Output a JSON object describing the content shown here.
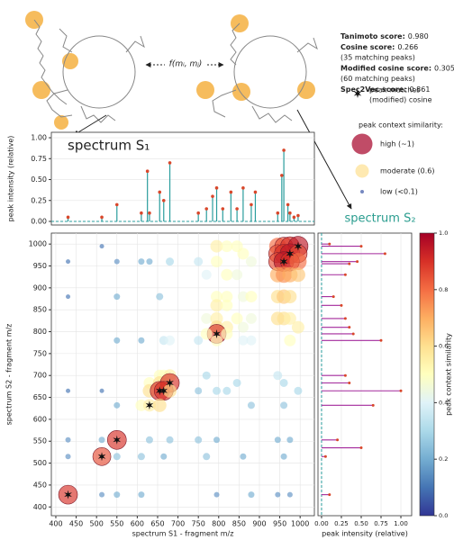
{
  "header": {
    "formula": "f(mᵢ, mⱼ)",
    "scores": [
      {
        "label": "Tanimoto score:",
        "value": "0.980"
      },
      {
        "label": "Cosine score:",
        "value": "0.266"
      },
      {
        "value": "(35 matching peaks)"
      },
      {
        "label": "Modified cosine score:",
        "value": "0.305"
      },
      {
        "value": "(60 matching peaks)"
      },
      {
        "label": "Spec2Vec score:",
        "value": "0.861"
      }
    ]
  },
  "legend": {
    "match": [
      "peak matches",
      "(modified) cosine"
    ],
    "title": "peak context similarity:",
    "items": [
      {
        "label": "high (~1)",
        "value": 1
      },
      {
        "label": "moderate (0.6)",
        "value": 0.6
      },
      {
        "label": "low (<0.1)",
        "value": 0.05
      }
    ]
  },
  "chart_data": [
    {
      "type": "stem",
      "title": "spectrum S₁",
      "ylabel": "peak intensity (relative)",
      "x": [
        430,
        513,
        550,
        610,
        625,
        630,
        655,
        665,
        680,
        750,
        770,
        785,
        795,
        810,
        830,
        845,
        860,
        880,
        890,
        945,
        955,
        960,
        970,
        975,
        985,
        995
      ],
      "values": [
        0.05,
        0.05,
        0.2,
        0.1,
        0.6,
        0.1,
        0.35,
        0.25,
        0.7,
        0.1,
        0.15,
        0.3,
        0.4,
        0.15,
        0.35,
        0.15,
        0.4,
        0.2,
        0.35,
        0.1,
        0.55,
        0.85,
        0.2,
        0.1,
        0.05,
        0.07
      ],
      "xlim": [
        389,
        1035
      ],
      "ylim": [
        -0.043,
        1.065
      ],
      "yticks": [
        {
          "value": 0,
          "label": "0.00"
        },
        {
          "value": 0.25,
          "label": "0.25"
        },
        {
          "value": 0.5,
          "label": "0.50"
        },
        {
          "value": 0.75,
          "label": "0.75"
        },
        {
          "value": 1,
          "label": "1.00"
        }
      ],
      "grid": true,
      "color": "#d9472b",
      "line_color": "#2a9d9d"
    },
    {
      "type": "scatter",
      "xlabel": "spectrum S1 - fragment m/z",
      "ylabel": "spectrum S2 - fragment m/z",
      "xlim": [
        389,
        1035
      ],
      "ylim": [
        380,
        1025
      ],
      "xticks": [
        400,
        450,
        500,
        550,
        600,
        650,
        700,
        750,
        800,
        850,
        900,
        950,
        1000
      ],
      "yticks": [
        400,
        450,
        500,
        550,
        600,
        650,
        700,
        750,
        800,
        850,
        900,
        950,
        1000
      ],
      "grid": true,
      "points": [
        {
          "x": 945,
          "y": 995,
          "value": 0.8
        },
        {
          "x": 960,
          "y": 995,
          "value": 0.85
        },
        {
          "x": 975,
          "y": 995,
          "value": 0.9
        },
        {
          "x": 995,
          "y": 995,
          "value": 0.95
        },
        {
          "x": 945,
          "y": 978,
          "value": 0.85
        },
        {
          "x": 960,
          "y": 978,
          "value": 0.9
        },
        {
          "x": 975,
          "y": 978,
          "value": 0.95
        },
        {
          "x": 995,
          "y": 978,
          "value": 0.85
        },
        {
          "x": 945,
          "y": 960,
          "value": 0.85
        },
        {
          "x": 960,
          "y": 960,
          "value": 0.95
        },
        {
          "x": 975,
          "y": 960,
          "value": 0.9
        },
        {
          "x": 995,
          "y": 960,
          "value": 0.8
        },
        {
          "x": 945,
          "y": 930,
          "value": 0.7
        },
        {
          "x": 960,
          "y": 930,
          "value": 0.75
        },
        {
          "x": 975,
          "y": 930,
          "value": 0.7
        },
        {
          "x": 995,
          "y": 930,
          "value": 0.65
        },
        {
          "x": 945,
          "y": 880,
          "value": 0.6
        },
        {
          "x": 960,
          "y": 880,
          "value": 0.65
        },
        {
          "x": 975,
          "y": 880,
          "value": 0.6
        },
        {
          "x": 945,
          "y": 830,
          "value": 0.6
        },
        {
          "x": 960,
          "y": 830,
          "value": 0.6
        },
        {
          "x": 975,
          "y": 830,
          "value": 0.55
        },
        {
          "x": 795,
          "y": 995,
          "value": 0.55
        },
        {
          "x": 820,
          "y": 995,
          "value": 0.5
        },
        {
          "x": 845,
          "y": 995,
          "value": 0.5
        },
        {
          "x": 860,
          "y": 978,
          "value": 0.5
        },
        {
          "x": 880,
          "y": 960,
          "value": 0.45
        },
        {
          "x": 795,
          "y": 960,
          "value": 0.5
        },
        {
          "x": 820,
          "y": 930,
          "value": 0.5
        },
        {
          "x": 845,
          "y": 930,
          "value": 0.45
        },
        {
          "x": 770,
          "y": 930,
          "value": 0.4
        },
        {
          "x": 795,
          "y": 880,
          "value": 0.5
        },
        {
          "x": 820,
          "y": 880,
          "value": 0.5
        },
        {
          "x": 860,
          "y": 880,
          "value": 0.45
        },
        {
          "x": 880,
          "y": 880,
          "value": 0.5
        },
        {
          "x": 795,
          "y": 860,
          "value": 0.55
        },
        {
          "x": 820,
          "y": 860,
          "value": 0.5
        },
        {
          "x": 845,
          "y": 830,
          "value": 0.5
        },
        {
          "x": 880,
          "y": 830,
          "value": 0.45
        },
        {
          "x": 770,
          "y": 830,
          "value": 0.45
        },
        {
          "x": 795,
          "y": 830,
          "value": 0.55
        },
        {
          "x": 795,
          "y": 810,
          "value": 0.6
        },
        {
          "x": 820,
          "y": 810,
          "value": 0.55
        },
        {
          "x": 860,
          "y": 810,
          "value": 0.45
        },
        {
          "x": 795,
          "y": 795,
          "value": 0.9
        },
        {
          "x": 770,
          "y": 795,
          "value": 0.5
        },
        {
          "x": 820,
          "y": 795,
          "value": 0.5
        },
        {
          "x": 860,
          "y": 780,
          "value": 0.4
        },
        {
          "x": 880,
          "y": 780,
          "value": 0.4
        },
        {
          "x": 750,
          "y": 780,
          "value": 0.35
        },
        {
          "x": 795,
          "y": 780,
          "value": 0.5
        },
        {
          "x": 665,
          "y": 780,
          "value": 0.35
        },
        {
          "x": 680,
          "y": 780,
          "value": 0.4
        },
        {
          "x": 665,
          "y": 700,
          "value": 0.5
        },
        {
          "x": 680,
          "y": 700,
          "value": 0.55
        },
        {
          "x": 655,
          "y": 700,
          "value": 0.5
        },
        {
          "x": 630,
          "y": 683,
          "value": 0.5
        },
        {
          "x": 655,
          "y": 683,
          "value": 0.6
        },
        {
          "x": 665,
          "y": 683,
          "value": 0.55
        },
        {
          "x": 680,
          "y": 683,
          "value": 0.9
        },
        {
          "x": 630,
          "y": 665,
          "value": 0.6
        },
        {
          "x": 655,
          "y": 665,
          "value": 0.9
        },
        {
          "x": 665,
          "y": 665,
          "value": 0.9
        },
        {
          "x": 680,
          "y": 665,
          "value": 0.6
        },
        {
          "x": 610,
          "y": 632,
          "value": 0.5
        },
        {
          "x": 630,
          "y": 632,
          "value": 0.55
        },
        {
          "x": 655,
          "y": 632,
          "value": 0.6
        },
        {
          "x": 550,
          "y": 553,
          "value": 0.9
        },
        {
          "x": 513,
          "y": 515,
          "value": 0.85
        },
        {
          "x": 430,
          "y": 428,
          "value": 0.9
        },
        {
          "x": 430,
          "y": 515,
          "value": 0.15
        },
        {
          "x": 430,
          "y": 553,
          "value": 0.15
        },
        {
          "x": 430,
          "y": 665,
          "value": 0.1
        },
        {
          "x": 430,
          "y": 960,
          "value": 0.1
        },
        {
          "x": 430,
          "y": 880,
          "value": 0.1
        },
        {
          "x": 513,
          "y": 428,
          "value": 0.15
        },
        {
          "x": 513,
          "y": 553,
          "value": 0.2
        },
        {
          "x": 513,
          "y": 665,
          "value": 0.1
        },
        {
          "x": 513,
          "y": 995,
          "value": 0.1
        },
        {
          "x": 550,
          "y": 428,
          "value": 0.2
        },
        {
          "x": 550,
          "y": 515,
          "value": 0.25
        },
        {
          "x": 550,
          "y": 632,
          "value": 0.2
        },
        {
          "x": 550,
          "y": 780,
          "value": 0.2
        },
        {
          "x": 550,
          "y": 960,
          "value": 0.15
        },
        {
          "x": 550,
          "y": 880,
          "value": 0.2
        },
        {
          "x": 610,
          "y": 428,
          "value": 0.2
        },
        {
          "x": 610,
          "y": 515,
          "value": 0.25
        },
        {
          "x": 610,
          "y": 780,
          "value": 0.2
        },
        {
          "x": 610,
          "y": 960,
          "value": 0.2
        },
        {
          "x": 630,
          "y": 553,
          "value": 0.25
        },
        {
          "x": 630,
          "y": 960,
          "value": 0.2
        },
        {
          "x": 655,
          "y": 880,
          "value": 0.25
        },
        {
          "x": 680,
          "y": 960,
          "value": 0.3
        },
        {
          "x": 680,
          "y": 553,
          "value": 0.25
        },
        {
          "x": 665,
          "y": 515,
          "value": 0.2
        },
        {
          "x": 750,
          "y": 553,
          "value": 0.25
        },
        {
          "x": 750,
          "y": 665,
          "value": 0.25
        },
        {
          "x": 750,
          "y": 960,
          "value": 0.35
        },
        {
          "x": 770,
          "y": 700,
          "value": 0.3
        },
        {
          "x": 770,
          "y": 515,
          "value": 0.25
        },
        {
          "x": 795,
          "y": 665,
          "value": 0.3
        },
        {
          "x": 795,
          "y": 553,
          "value": 0.2
        },
        {
          "x": 820,
          "y": 665,
          "value": 0.3
        },
        {
          "x": 845,
          "y": 683,
          "value": 0.3
        },
        {
          "x": 860,
          "y": 515,
          "value": 0.2
        },
        {
          "x": 880,
          "y": 632,
          "value": 0.25
        },
        {
          "x": 945,
          "y": 428,
          "value": 0.15
        },
        {
          "x": 960,
          "y": 515,
          "value": 0.2
        },
        {
          "x": 975,
          "y": 553,
          "value": 0.2
        },
        {
          "x": 995,
          "y": 665,
          "value": 0.3
        },
        {
          "x": 945,
          "y": 700,
          "value": 0.35
        },
        {
          "x": 960,
          "y": 632,
          "value": 0.25
        },
        {
          "x": 975,
          "y": 780,
          "value": 0.5
        },
        {
          "x": 995,
          "y": 810,
          "value": 0.55
        },
        {
          "x": 960,
          "y": 683,
          "value": 0.3
        },
        {
          "x": 945,
          "y": 553,
          "value": 0.2
        },
        {
          "x": 975,
          "y": 428,
          "value": 0.15
        },
        {
          "x": 880,
          "y": 428,
          "value": 0.2
        },
        {
          "x": 795,
          "y": 428,
          "value": 0.15
        }
      ],
      "matches": {
        "x": [
          430,
          513,
          550,
          630,
          655,
          665,
          680,
          795,
          960,
          975,
          995
        ],
        "y": [
          428,
          515,
          553,
          632,
          665,
          665,
          683,
          795,
          960,
          978,
          995
        ]
      },
      "colorbar": {
        "label": "peak context similarity",
        "colormap": "RdYlBu_r",
        "lim": [
          0,
          1
        ],
        "ticks": [
          {
            "value": 0,
            "label": "0.0"
          },
          {
            "value": 0.2,
            "label": "0.2"
          },
          {
            "value": 0.4,
            "label": "0.4"
          },
          {
            "value": 0.6,
            "label": "0.6"
          },
          {
            "value": 0.8,
            "label": "0.8"
          },
          {
            "value": 1,
            "label": "1.0"
          }
        ]
      }
    },
    {
      "type": "hstem",
      "title": "spectrum S₂",
      "title_color": "#2a9d8f",
      "xlabel": "peak intensity (relative)",
      "y": [
        428,
        515,
        535,
        553,
        632,
        665,
        683,
        700,
        780,
        795,
        810,
        830,
        860,
        880,
        930,
        955,
        960,
        978,
        995,
        1000
      ],
      "values": [
        0.1,
        0.05,
        0.5,
        0.2,
        0.65,
        1.0,
        0.35,
        0.3,
        0.75,
        0.4,
        0.35,
        0.3,
        0.25,
        0.15,
        0.3,
        0.35,
        0.45,
        0.8,
        0.5,
        0.1
      ],
      "xlim": [
        -0.045,
        1.136
      ],
      "ylim": [
        380,
        1025
      ],
      "xticks": [
        {
          "value": 0,
          "label": "0.00"
        },
        {
          "value": 0.25,
          "label": "0.25"
        },
        {
          "value": 0.5,
          "label": "0.50"
        },
        {
          "value": 0.75,
          "label": "0.75"
        },
        {
          "value": 1,
          "label": "1.00"
        }
      ],
      "grid": true,
      "color": "#a3289b"
    }
  ]
}
